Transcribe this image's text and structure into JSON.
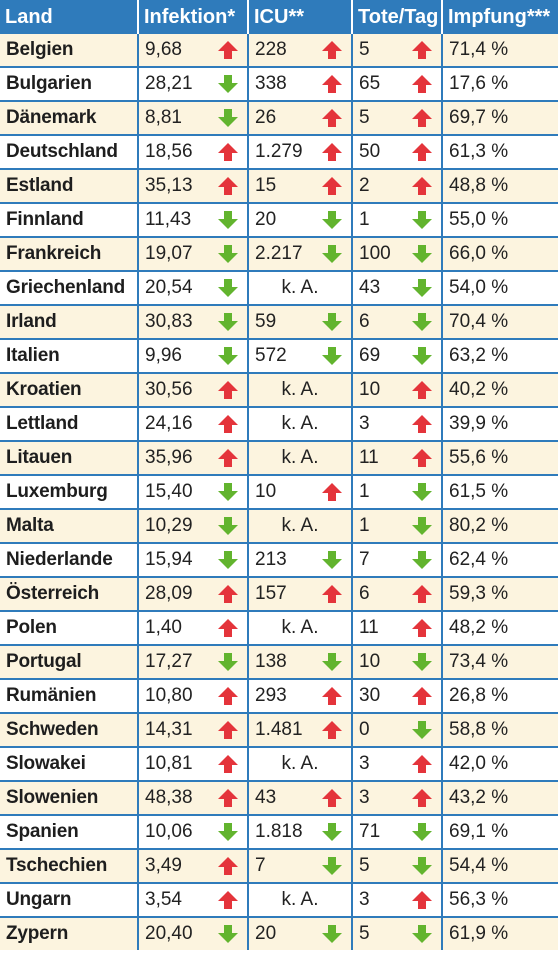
{
  "headers": [
    "Land",
    "Infektion*",
    "ICU**",
    "Tote/Tag",
    "Impfung***"
  ],
  "colors": {
    "header_bg": "#2f7bbb",
    "row_shade": "#fcf4df",
    "arrow_up": "#e4343b",
    "arrow_down": "#62b42e"
  },
  "rows": [
    {
      "land": "Belgien",
      "inf": "9,68",
      "inf_dir": "up",
      "icu": "228",
      "icu_dir": "up",
      "tote": "5",
      "tote_dir": "up",
      "impf": "71,4 %"
    },
    {
      "land": "Bulgarien",
      "inf": "28,21",
      "inf_dir": "down",
      "icu": "338",
      "icu_dir": "up",
      "tote": "65",
      "tote_dir": "up",
      "impf": "17,6 %"
    },
    {
      "land": "Dänemark",
      "inf": "8,81",
      "inf_dir": "down",
      "icu": "26",
      "icu_dir": "up",
      "tote": "5",
      "tote_dir": "up",
      "impf": "69,7 %"
    },
    {
      "land": "Deutschland",
      "inf": "18,56",
      "inf_dir": "up",
      "icu": "1.279",
      "icu_dir": "up",
      "tote": "50",
      "tote_dir": "up",
      "impf": "61,3 %"
    },
    {
      "land": "Estland",
      "inf": "35,13",
      "inf_dir": "up",
      "icu": "15",
      "icu_dir": "up",
      "tote": "2",
      "tote_dir": "up",
      "impf": "48,8 %"
    },
    {
      "land": "Finnland",
      "inf": "11,43",
      "inf_dir": "down",
      "icu": "20",
      "icu_dir": "down",
      "tote": "1",
      "tote_dir": "down",
      "impf": "55,0 %"
    },
    {
      "land": "Frankreich",
      "inf": "19,07",
      "inf_dir": "down",
      "icu": "2.217",
      "icu_dir": "down",
      "tote": "100",
      "tote_dir": "down",
      "impf": "66,0 %"
    },
    {
      "land": "Griechenland",
      "inf": "20,54",
      "inf_dir": "down",
      "icu": "k. A.",
      "icu_dir": "",
      "tote": "43",
      "tote_dir": "down",
      "impf": "54,0 %"
    },
    {
      "land": "Irland",
      "inf": "30,83",
      "inf_dir": "down",
      "icu": "59",
      "icu_dir": "down",
      "tote": "6",
      "tote_dir": "down",
      "impf": "70,4 %"
    },
    {
      "land": "Italien",
      "inf": "9,96",
      "inf_dir": "down",
      "icu": "572",
      "icu_dir": "down",
      "tote": "69",
      "tote_dir": "down",
      "impf": "63,2 %"
    },
    {
      "land": "Kroatien",
      "inf": "30,56",
      "inf_dir": "up",
      "icu": "k. A.",
      "icu_dir": "",
      "tote": "10",
      "tote_dir": "up",
      "impf": "40,2 %"
    },
    {
      "land": "Lettland",
      "inf": "24,16",
      "inf_dir": "up",
      "icu": "k. A.",
      "icu_dir": "",
      "tote": "3",
      "tote_dir": "up",
      "impf": "39,9 %"
    },
    {
      "land": "Litauen",
      "inf": "35,96",
      "inf_dir": "up",
      "icu": "k. A.",
      "icu_dir": "",
      "tote": "11",
      "tote_dir": "up",
      "impf": "55,6 %"
    },
    {
      "land": "Luxemburg",
      "inf": "15,40",
      "inf_dir": "down",
      "icu": "10",
      "icu_dir": "up",
      "tote": "1",
      "tote_dir": "down",
      "impf": "61,5 %"
    },
    {
      "land": "Malta",
      "inf": "10,29",
      "inf_dir": "down",
      "icu": "k. A.",
      "icu_dir": "",
      "tote": "1",
      "tote_dir": "down",
      "impf": "80,2 %"
    },
    {
      "land": "Niederlande",
      "inf": "15,94",
      "inf_dir": "down",
      "icu": "213",
      "icu_dir": "down",
      "tote": "7",
      "tote_dir": "down",
      "impf": "62,4 %"
    },
    {
      "land": "Österreich",
      "inf": "28,09",
      "inf_dir": "up",
      "icu": "157",
      "icu_dir": "up",
      "tote": "6",
      "tote_dir": "up",
      "impf": "59,3 %"
    },
    {
      "land": "Polen",
      "inf": "1,40",
      "inf_dir": "up",
      "icu": "k. A.",
      "icu_dir": "",
      "tote": "11",
      "tote_dir": "up",
      "impf": "48,2 %"
    },
    {
      "land": "Portugal",
      "inf": "17,27",
      "inf_dir": "down",
      "icu": "138",
      "icu_dir": "down",
      "tote": "10",
      "tote_dir": "down",
      "impf": "73,4 %"
    },
    {
      "land": "Rumänien",
      "inf": "10,80",
      "inf_dir": "up",
      "icu": "293",
      "icu_dir": "up",
      "tote": "30",
      "tote_dir": "up",
      "impf": "26,8 %"
    },
    {
      "land": "Schweden",
      "inf": "14,31",
      "inf_dir": "up",
      "icu": "1.481",
      "icu_dir": "up",
      "tote": "0",
      "tote_dir": "down",
      "impf": "58,8 %"
    },
    {
      "land": "Slowakei",
      "inf": "10,81",
      "inf_dir": "up",
      "icu": "k. A.",
      "icu_dir": "",
      "tote": "3",
      "tote_dir": "up",
      "impf": "42,0 %"
    },
    {
      "land": "Slowenien",
      "inf": "48,38",
      "inf_dir": "up",
      "icu": "43",
      "icu_dir": "up",
      "tote": "3",
      "tote_dir": "up",
      "impf": "43,2 %"
    },
    {
      "land": "Spanien",
      "inf": "10,06",
      "inf_dir": "down",
      "icu": "1.818",
      "icu_dir": "down",
      "tote": "71",
      "tote_dir": "down",
      "impf": "69,1 %"
    },
    {
      "land": "Tschechien",
      "inf": "3,49",
      "inf_dir": "up",
      "icu": "7",
      "icu_dir": "down",
      "tote": "5",
      "tote_dir": "down",
      "impf": "54,4 %"
    },
    {
      "land": "Ungarn",
      "inf": "3,54",
      "inf_dir": "up",
      "icu": "k. A.",
      "icu_dir": "",
      "tote": "3",
      "tote_dir": "up",
      "impf": "56,3 %"
    },
    {
      "land": "Zypern",
      "inf": "20,40",
      "inf_dir": "down",
      "icu": "20",
      "icu_dir": "down",
      "tote": "5",
      "tote_dir": "down",
      "impf": "61,9 %"
    }
  ]
}
